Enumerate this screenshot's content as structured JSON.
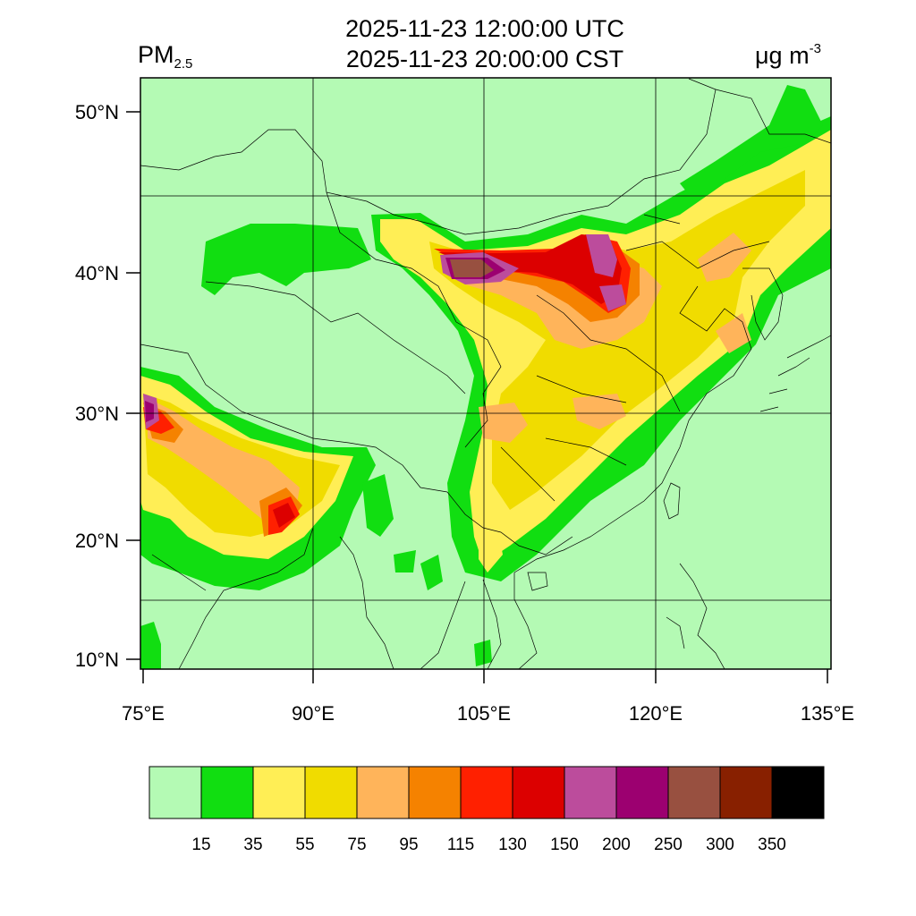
{
  "header": {
    "time_utc": "2025-11-23 12:00:00 UTC",
    "time_cst": "2025-11-23 20:00:00 CST",
    "variable_main": "PM",
    "variable_sub": "2.5",
    "unit_main": "μg m",
    "unit_sup": "-3"
  },
  "map": {
    "lat_ticks": [
      {
        "label": "50°N"
      },
      {
        "label": "40°N"
      },
      {
        "label": "30°N"
      },
      {
        "label": "20°N"
      },
      {
        "label": "10°N"
      }
    ],
    "lon_ticks": [
      {
        "label": "75°E"
      },
      {
        "label": "90°E"
      },
      {
        "label": "105°E"
      },
      {
        "label": "120°E"
      },
      {
        "label": "135°E"
      }
    ],
    "background_color": "#b4fab4"
  },
  "colorbar": {
    "colors": [
      "#b4fab4",
      "#11de11",
      "#ffee55",
      "#f0dc00",
      "#ffb45a",
      "#f58200",
      "#ff2000",
      "#dc0000",
      "#bc4c9c",
      "#9c0070",
      "#985040",
      "#882000",
      "#000000"
    ],
    "labels": [
      "15",
      "35",
      "55",
      "75",
      "95",
      "115",
      "130",
      "150",
      "200",
      "250",
      "300",
      "350"
    ]
  }
}
